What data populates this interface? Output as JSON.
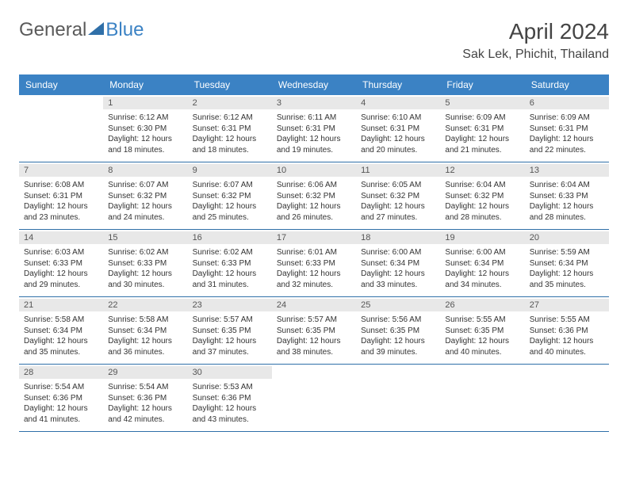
{
  "logo": {
    "text1": "General",
    "text2": "Blue"
  },
  "title": "April 2024",
  "location": "Sak Lek, Phichit, Thailand",
  "colors": {
    "header_bg": "#3b82c4",
    "header_text": "#ffffff",
    "daynum_bg": "#e8e8e8",
    "row_border": "#2f6fa8",
    "text": "#333333"
  },
  "day_headers": [
    "Sunday",
    "Monday",
    "Tuesday",
    "Wednesday",
    "Thursday",
    "Friday",
    "Saturday"
  ],
  "weeks": [
    [
      {
        "blank": true
      },
      {
        "n": "1",
        "sr": "6:12 AM",
        "ss": "6:30 PM",
        "dl": "12 hours and 18 minutes."
      },
      {
        "n": "2",
        "sr": "6:12 AM",
        "ss": "6:31 PM",
        "dl": "12 hours and 18 minutes."
      },
      {
        "n": "3",
        "sr": "6:11 AM",
        "ss": "6:31 PM",
        "dl": "12 hours and 19 minutes."
      },
      {
        "n": "4",
        "sr": "6:10 AM",
        "ss": "6:31 PM",
        "dl": "12 hours and 20 minutes."
      },
      {
        "n": "5",
        "sr": "6:09 AM",
        "ss": "6:31 PM",
        "dl": "12 hours and 21 minutes."
      },
      {
        "n": "6",
        "sr": "6:09 AM",
        "ss": "6:31 PM",
        "dl": "12 hours and 22 minutes."
      }
    ],
    [
      {
        "n": "7",
        "sr": "6:08 AM",
        "ss": "6:31 PM",
        "dl": "12 hours and 23 minutes."
      },
      {
        "n": "8",
        "sr": "6:07 AM",
        "ss": "6:32 PM",
        "dl": "12 hours and 24 minutes."
      },
      {
        "n": "9",
        "sr": "6:07 AM",
        "ss": "6:32 PM",
        "dl": "12 hours and 25 minutes."
      },
      {
        "n": "10",
        "sr": "6:06 AM",
        "ss": "6:32 PM",
        "dl": "12 hours and 26 minutes."
      },
      {
        "n": "11",
        "sr": "6:05 AM",
        "ss": "6:32 PM",
        "dl": "12 hours and 27 minutes."
      },
      {
        "n": "12",
        "sr": "6:04 AM",
        "ss": "6:32 PM",
        "dl": "12 hours and 28 minutes."
      },
      {
        "n": "13",
        "sr": "6:04 AM",
        "ss": "6:33 PM",
        "dl": "12 hours and 28 minutes."
      }
    ],
    [
      {
        "n": "14",
        "sr": "6:03 AM",
        "ss": "6:33 PM",
        "dl": "12 hours and 29 minutes."
      },
      {
        "n": "15",
        "sr": "6:02 AM",
        "ss": "6:33 PM",
        "dl": "12 hours and 30 minutes."
      },
      {
        "n": "16",
        "sr": "6:02 AM",
        "ss": "6:33 PM",
        "dl": "12 hours and 31 minutes."
      },
      {
        "n": "17",
        "sr": "6:01 AM",
        "ss": "6:33 PM",
        "dl": "12 hours and 32 minutes."
      },
      {
        "n": "18",
        "sr": "6:00 AM",
        "ss": "6:34 PM",
        "dl": "12 hours and 33 minutes."
      },
      {
        "n": "19",
        "sr": "6:00 AM",
        "ss": "6:34 PM",
        "dl": "12 hours and 34 minutes."
      },
      {
        "n": "20",
        "sr": "5:59 AM",
        "ss": "6:34 PM",
        "dl": "12 hours and 35 minutes."
      }
    ],
    [
      {
        "n": "21",
        "sr": "5:58 AM",
        "ss": "6:34 PM",
        "dl": "12 hours and 35 minutes."
      },
      {
        "n": "22",
        "sr": "5:58 AM",
        "ss": "6:34 PM",
        "dl": "12 hours and 36 minutes."
      },
      {
        "n": "23",
        "sr": "5:57 AM",
        "ss": "6:35 PM",
        "dl": "12 hours and 37 minutes."
      },
      {
        "n": "24",
        "sr": "5:57 AM",
        "ss": "6:35 PM",
        "dl": "12 hours and 38 minutes."
      },
      {
        "n": "25",
        "sr": "5:56 AM",
        "ss": "6:35 PM",
        "dl": "12 hours and 39 minutes."
      },
      {
        "n": "26",
        "sr": "5:55 AM",
        "ss": "6:35 PM",
        "dl": "12 hours and 40 minutes."
      },
      {
        "n": "27",
        "sr": "5:55 AM",
        "ss": "6:36 PM",
        "dl": "12 hours and 40 minutes."
      }
    ],
    [
      {
        "n": "28",
        "sr": "5:54 AM",
        "ss": "6:36 PM",
        "dl": "12 hours and 41 minutes."
      },
      {
        "n": "29",
        "sr": "5:54 AM",
        "ss": "6:36 PM",
        "dl": "12 hours and 42 minutes."
      },
      {
        "n": "30",
        "sr": "5:53 AM",
        "ss": "6:36 PM",
        "dl": "12 hours and 43 minutes."
      },
      {
        "blank": true
      },
      {
        "blank": true
      },
      {
        "blank": true
      },
      {
        "blank": true
      }
    ]
  ],
  "labels": {
    "sunrise": "Sunrise: ",
    "sunset": "Sunset: ",
    "daylight": "Daylight: "
  }
}
